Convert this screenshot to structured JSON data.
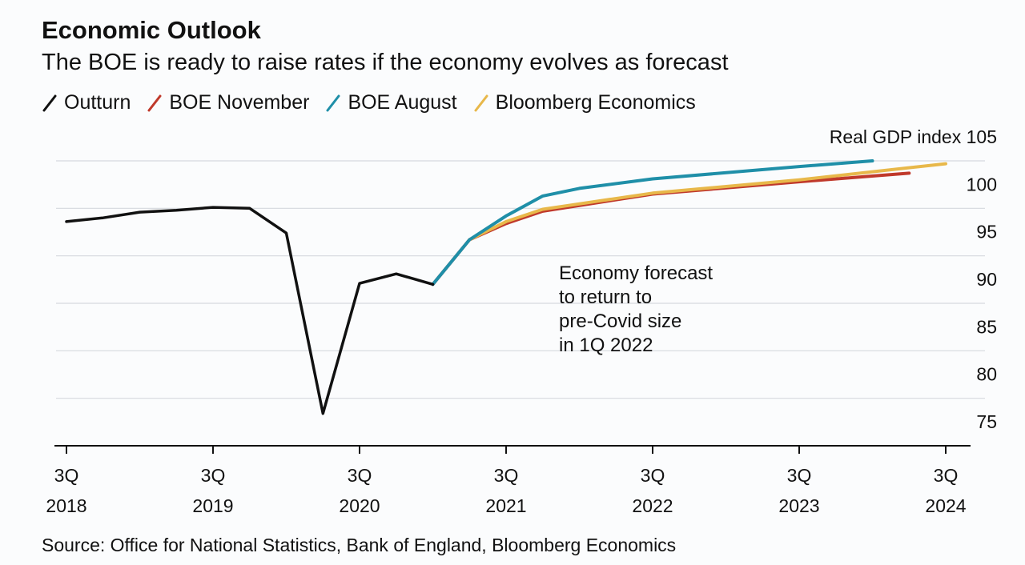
{
  "chart_data": {
    "type": "line",
    "title": "Economic Outlook",
    "subtitle": "The BOE is ready to raise rates if the economy evolves as forecast",
    "ylabel": "Real GDP index",
    "ylim": [
      75,
      105
    ],
    "yticks": [
      75,
      80,
      85,
      90,
      95,
      100,
      105
    ],
    "grid": true,
    "legend_placement": "top-left",
    "xticks": [
      {
        "q": "3Q",
        "year": "2018"
      },
      {
        "q": "3Q",
        "year": "2019"
      },
      {
        "q": "3Q",
        "year": "2020"
      },
      {
        "q": "3Q",
        "year": "2021"
      },
      {
        "q": "3Q",
        "year": "2022"
      },
      {
        "q": "3Q",
        "year": "2023"
      },
      {
        "q": "3Q",
        "year": "2024"
      }
    ],
    "series": [
      {
        "name": "Outturn",
        "color": "#111111",
        "x": [
          "3Q2018",
          "4Q2018",
          "1Q2019",
          "2Q2019",
          "3Q2019",
          "4Q2019",
          "1Q2020",
          "2Q2020",
          "3Q2020",
          "4Q2020",
          "1Q2021"
        ],
        "values": [
          98.6,
          99.0,
          99.6,
          99.8,
          100.1,
          100.0,
          97.4,
          78.4,
          92.1,
          93.1,
          92.0
        ]
      },
      {
        "name": "BOE November",
        "color": "#c0392b",
        "x": [
          "1Q2021",
          "2Q2021",
          "3Q2021",
          "4Q2021",
          "3Q2022",
          "3Q2023",
          "2Q2024"
        ],
        "values": [
          92.0,
          96.7,
          98.4,
          99.7,
          101.5,
          102.8,
          103.7
        ]
      },
      {
        "name": "BOE August",
        "color": "#1f8fa8",
        "x": [
          "1Q2021",
          "2Q2021",
          "3Q2021",
          "4Q2021",
          "1Q2022",
          "3Q2022",
          "3Q2023",
          "1Q2024"
        ],
        "values": [
          92.0,
          96.7,
          99.2,
          101.3,
          102.1,
          103.1,
          104.4,
          105.0
        ]
      },
      {
        "name": "Bloomberg Economics",
        "color": "#e8b84a",
        "x": [
          "2Q2021",
          "3Q2021",
          "4Q2021",
          "3Q2022",
          "3Q2023",
          "3Q2024"
        ],
        "values": [
          96.7,
          98.6,
          99.9,
          101.6,
          103.0,
          104.7
        ]
      }
    ],
    "annotation": [
      "Economy forecast",
      "to return to",
      "pre-Covid size",
      "in 1Q 2022"
    ],
    "source": "Source: Office for National Statistics, Bank of England, Bloomberg Economics"
  }
}
